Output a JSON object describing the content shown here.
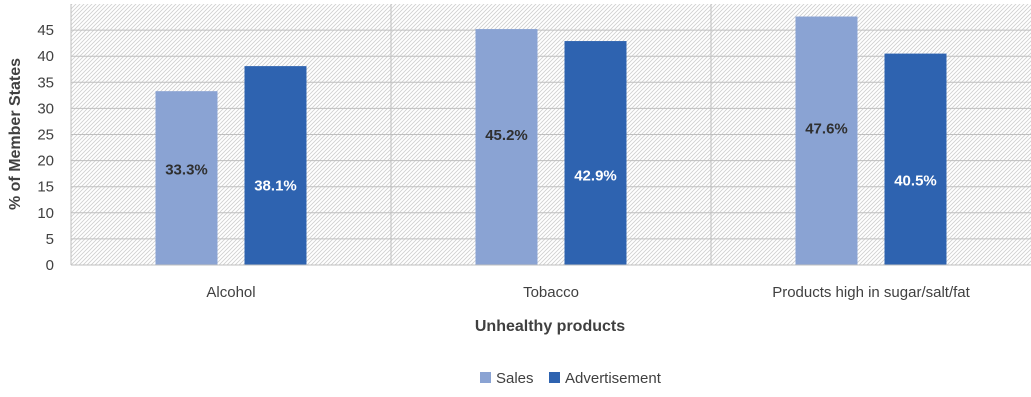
{
  "chart_data": {
    "type": "bar",
    "title": "",
    "xlabel": "Unhealthy products",
    "ylabel": "% of Member States",
    "categories": [
      "Alcohol",
      "Tobacco",
      "Products high in sugar/salt/fat"
    ],
    "series": [
      {
        "name": "Sales",
        "values": [
          33.3,
          45.2,
          47.6
        ],
        "labels": [
          "33.3%",
          "45.2%",
          "47.6%"
        ],
        "color": "#8aa3d3",
        "label_color": "#2f2f2f"
      },
      {
        "name": "Advertisement",
        "values": [
          38.1,
          42.9,
          40.5
        ],
        "labels": [
          "38.1%",
          "42.9%",
          "40.5%"
        ],
        "color": "#2e63b0",
        "label_color": "#ffffff"
      }
    ],
    "ylim": [
      0,
      50
    ],
    "yticks": [
      0,
      5,
      10,
      15,
      20,
      25,
      30,
      35,
      40,
      45
    ],
    "grid": true,
    "legend_position": "bottom"
  }
}
